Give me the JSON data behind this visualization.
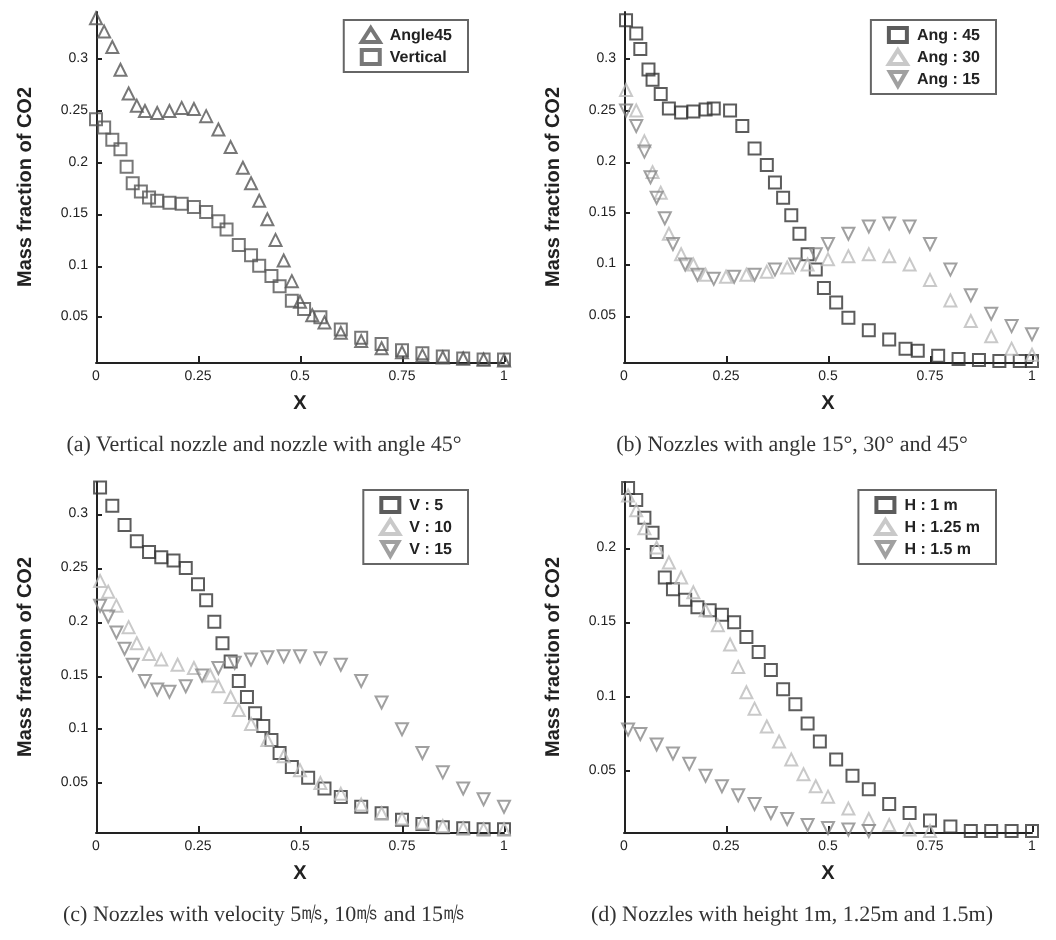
{
  "chart_data": [
    {
      "type": "scatter",
      "title": "(a) Vertical nozzle and nozzle with angle 45°",
      "xlabel": "X",
      "ylabel": "Mass fraction of CO2",
      "xlim": [
        0,
        1
      ],
      "xticks": [
        0,
        0.25,
        0.5,
        0.75,
        1
      ],
      "ylim": [
        0.0066,
        0.346
      ],
      "yticks": [
        0.05,
        0.1,
        0.15,
        0.2,
        0.25,
        0.3
      ],
      "legend": "top right",
      "series": [
        {
          "name": "Angle45",
          "color": "#555555",
          "marker": "triangle",
          "x": [
            0,
            0.02,
            0.04,
            0.06,
            0.08,
            0.1,
            0.12,
            0.15,
            0.18,
            0.21,
            0.24,
            0.27,
            0.3,
            0.33,
            0.36,
            0.38,
            0.4,
            0.42,
            0.44,
            0.46,
            0.48,
            0.5,
            0.53,
            0.56,
            0.6,
            0.65,
            0.7,
            0.75,
            0.8,
            0.85,
            0.9,
            0.95,
            1
          ],
          "values": [
            0.34,
            0.327,
            0.312,
            0.29,
            0.267,
            0.255,
            0.25,
            0.248,
            0.25,
            0.253,
            0.252,
            0.245,
            0.232,
            0.215,
            0.195,
            0.18,
            0.163,
            0.145,
            0.125,
            0.105,
            0.085,
            0.065,
            0.052,
            0.045,
            0.035,
            0.027,
            0.02,
            0.016,
            0.013,
            0.011,
            0.01,
            0.009,
            0.008
          ]
        },
        {
          "name": "Vertical",
          "color": "#555555",
          "marker": "square",
          "x": [
            0,
            0.02,
            0.04,
            0.06,
            0.075,
            0.09,
            0.11,
            0.13,
            0.15,
            0.18,
            0.21,
            0.24,
            0.27,
            0.3,
            0.32,
            0.35,
            0.38,
            0.4,
            0.43,
            0.45,
            0.48,
            0.51,
            0.55,
            0.6,
            0.65,
            0.7,
            0.75,
            0.8,
            0.85,
            0.9,
            0.95,
            1
          ],
          "values": [
            0.242,
            0.234,
            0.222,
            0.213,
            0.196,
            0.18,
            0.172,
            0.166,
            0.163,
            0.161,
            0.16,
            0.157,
            0.152,
            0.143,
            0.135,
            0.12,
            0.11,
            0.1,
            0.09,
            0.08,
            0.066,
            0.058,
            0.05,
            0.038,
            0.03,
            0.024,
            0.018,
            0.015,
            0.012,
            0.01,
            0.009,
            0.009
          ]
        }
      ]
    },
    {
      "type": "scatter",
      "title": "(b) Nozzles with angle 15°, 30° and 45°",
      "xlabel": "X",
      "ylabel": "Mass fraction of CO2",
      "xlim": [
        0,
        1
      ],
      "xticks": [
        0,
        0.25,
        0.5,
        0.75,
        1
      ],
      "ylim": [
        0.005,
        0.346
      ],
      "yticks": [
        0.05,
        0.1,
        0.15,
        0.2,
        0.25,
        0.3
      ],
      "legend": "top right",
      "series": [
        {
          "name": "Ang : 45",
          "color": "#333333",
          "marker": "square",
          "x": [
            0.005,
            0.03,
            0.04,
            0.06,
            0.07,
            0.09,
            0.11,
            0.14,
            0.17,
            0.2,
            0.22,
            0.26,
            0.29,
            0.32,
            0.35,
            0.37,
            0.39,
            0.41,
            0.43,
            0.45,
            0.47,
            0.49,
            0.52,
            0.55,
            0.6,
            0.65,
            0.69,
            0.72,
            0.77,
            0.82,
            0.87,
            0.92,
            0.97,
            1
          ],
          "values": [
            0.338,
            0.325,
            0.31,
            0.29,
            0.28,
            0.266,
            0.252,
            0.248,
            0.249,
            0.251,
            0.252,
            0.25,
            0.235,
            0.213,
            0.197,
            0.18,
            0.165,
            0.148,
            0.13,
            0.11,
            0.095,
            0.077,
            0.063,
            0.048,
            0.036,
            0.027,
            0.018,
            0.016,
            0.011,
            0.008,
            0.007,
            0.006,
            0.006,
            0.006
          ]
        },
        {
          "name": "Ang : 30",
          "color": "#bbbbbb",
          "marker": "triangle",
          "x": [
            0.005,
            0.03,
            0.05,
            0.07,
            0.09,
            0.11,
            0.14,
            0.17,
            0.2,
            0.25,
            0.3,
            0.35,
            0.4,
            0.45,
            0.5,
            0.55,
            0.6,
            0.65,
            0.7,
            0.75,
            0.8,
            0.85,
            0.9,
            0.95,
            1
          ],
          "values": [
            0.27,
            0.25,
            0.22,
            0.19,
            0.17,
            0.13,
            0.11,
            0.1,
            0.09,
            0.088,
            0.09,
            0.093,
            0.097,
            0.1,
            0.105,
            0.108,
            0.11,
            0.108,
            0.1,
            0.085,
            0.065,
            0.045,
            0.03,
            0.018,
            0.012
          ]
        },
        {
          "name": "Ang : 15",
          "color": "#888888",
          "marker": "triangle-down",
          "x": [
            0.005,
            0.03,
            0.05,
            0.065,
            0.08,
            0.1,
            0.12,
            0.15,
            0.18,
            0.22,
            0.27,
            0.32,
            0.37,
            0.42,
            0.47,
            0.5,
            0.55,
            0.6,
            0.65,
            0.7,
            0.75,
            0.8,
            0.85,
            0.9,
            0.95,
            1
          ],
          "values": [
            0.25,
            0.235,
            0.21,
            0.185,
            0.165,
            0.145,
            0.12,
            0.1,
            0.09,
            0.086,
            0.088,
            0.09,
            0.095,
            0.1,
            0.11,
            0.12,
            0.13,
            0.137,
            0.14,
            0.137,
            0.12,
            0.095,
            0.07,
            0.052,
            0.04,
            0.032
          ]
        }
      ]
    },
    {
      "type": "scatter",
      "title": "(c) Nozzles with velocity 5㎧, 10㎧ and 15㎧",
      "xlabel": "X",
      "ylabel": "Mass fraction of CO2",
      "xlim": [
        0,
        1
      ],
      "xticks": [
        0,
        0.25,
        0.5,
        0.75,
        1
      ],
      "ylim": [
        0.0045,
        0.33
      ],
      "yticks": [
        0.05,
        0.1,
        0.15,
        0.2,
        0.25,
        0.3
      ],
      "legend": "top right",
      "series": [
        {
          "name": "V : 5",
          "color": "#333333",
          "marker": "square",
          "x": [
            0.01,
            0.04,
            0.07,
            0.1,
            0.13,
            0.16,
            0.19,
            0.22,
            0.25,
            0.27,
            0.29,
            0.31,
            0.33,
            0.35,
            0.37,
            0.39,
            0.41,
            0.43,
            0.45,
            0.48,
            0.52,
            0.56,
            0.6,
            0.65,
            0.7,
            0.75,
            0.8,
            0.85,
            0.9,
            0.95,
            1
          ],
          "values": [
            0.325,
            0.308,
            0.29,
            0.275,
            0.265,
            0.26,
            0.257,
            0.25,
            0.235,
            0.22,
            0.2,
            0.18,
            0.163,
            0.145,
            0.13,
            0.115,
            0.103,
            0.09,
            0.078,
            0.065,
            0.055,
            0.045,
            0.037,
            0.028,
            0.022,
            0.016,
            0.012,
            0.009,
            0.008,
            0.007,
            0.007
          ]
        },
        {
          "name": "V : 10",
          "color": "#bbbbbb",
          "marker": "triangle",
          "x": [
            0.01,
            0.03,
            0.05,
            0.08,
            0.1,
            0.13,
            0.16,
            0.2,
            0.24,
            0.28,
            0.3,
            0.33,
            0.35,
            0.38,
            0.42,
            0.46,
            0.5,
            0.55,
            0.6,
            0.65,
            0.7,
            0.75,
            0.8,
            0.85,
            0.9,
            0.95,
            1
          ],
          "values": [
            0.238,
            0.228,
            0.215,
            0.195,
            0.18,
            0.17,
            0.165,
            0.16,
            0.157,
            0.15,
            0.14,
            0.13,
            0.118,
            0.105,
            0.09,
            0.075,
            0.062,
            0.05,
            0.04,
            0.03,
            0.022,
            0.017,
            0.013,
            0.01,
            0.008,
            0.007,
            0.007
          ]
        },
        {
          "name": "V : 15",
          "color": "#888888",
          "marker": "triangle-down",
          "x": [
            0.01,
            0.03,
            0.05,
            0.07,
            0.09,
            0.12,
            0.15,
            0.18,
            0.22,
            0.26,
            0.3,
            0.34,
            0.38,
            0.42,
            0.46,
            0.5,
            0.55,
            0.6,
            0.65,
            0.7,
            0.75,
            0.8,
            0.85,
            0.9,
            0.95,
            1
          ],
          "values": [
            0.215,
            0.205,
            0.19,
            0.175,
            0.16,
            0.145,
            0.137,
            0.135,
            0.14,
            0.15,
            0.157,
            0.162,
            0.165,
            0.167,
            0.168,
            0.168,
            0.166,
            0.16,
            0.145,
            0.125,
            0.1,
            0.078,
            0.06,
            0.045,
            0.035,
            0.028
          ]
        }
      ]
    },
    {
      "type": "scatter",
      "title": "(d) Nozzles with height 1m, 1.25m and 1.5m)",
      "xlabel": "X",
      "ylabel": "Mass fraction of CO2",
      "xlim": [
        0,
        1
      ],
      "xticks": [
        0,
        0.25,
        0.5,
        0.75,
        1
      ],
      "ylim": [
        0.0093,
        0.244
      ],
      "yticks": [
        0.05,
        0.1,
        0.15,
        0.2
      ],
      "legend": "top right",
      "series": [
        {
          "name": "H : 1 m",
          "color": "#333333",
          "marker": "square",
          "x": [
            0.01,
            0.03,
            0.05,
            0.07,
            0.08,
            0.1,
            0.12,
            0.15,
            0.18,
            0.21,
            0.24,
            0.27,
            0.3,
            0.33,
            0.36,
            0.39,
            0.42,
            0.45,
            0.48,
            0.52,
            0.56,
            0.6,
            0.65,
            0.7,
            0.75,
            0.8,
            0.85,
            0.9,
            0.95,
            1
          ],
          "values": [
            0.24,
            0.232,
            0.22,
            0.21,
            0.197,
            0.18,
            0.172,
            0.165,
            0.16,
            0.158,
            0.155,
            0.15,
            0.14,
            0.13,
            0.118,
            0.105,
            0.095,
            0.082,
            0.07,
            0.058,
            0.047,
            0.038,
            0.028,
            0.022,
            0.017,
            0.013,
            0.01,
            0.01,
            0.01,
            0.01
          ]
        },
        {
          "name": "H : 1.25 m",
          "color": "#bbbbbb",
          "marker": "triangle",
          "x": [
            0.01,
            0.03,
            0.05,
            0.08,
            0.11,
            0.14,
            0.17,
            0.2,
            0.23,
            0.26,
            0.28,
            0.3,
            0.32,
            0.35,
            0.38,
            0.41,
            0.44,
            0.47,
            0.5,
            0.55,
            0.6,
            0.65,
            0.7,
            0.75
          ],
          "values": [
            0.235,
            0.225,
            0.213,
            0.2,
            0.19,
            0.18,
            0.17,
            0.158,
            0.148,
            0.135,
            0.12,
            0.103,
            0.092,
            0.08,
            0.07,
            0.058,
            0.048,
            0.04,
            0.033,
            0.025,
            0.018,
            0.014,
            0.011,
            0.01
          ]
        },
        {
          "name": "H : 1.5 m",
          "color": "#888888",
          "marker": "triangle-down",
          "x": [
            0.01,
            0.04,
            0.08,
            0.12,
            0.16,
            0.2,
            0.24,
            0.28,
            0.32,
            0.36,
            0.4,
            0.45,
            0.5,
            0.55,
            0.6
          ],
          "values": [
            0.078,
            0.075,
            0.068,
            0.062,
            0.055,
            0.047,
            0.04,
            0.034,
            0.028,
            0.022,
            0.018,
            0.014,
            0.012,
            0.011,
            0.01
          ]
        }
      ]
    }
  ]
}
